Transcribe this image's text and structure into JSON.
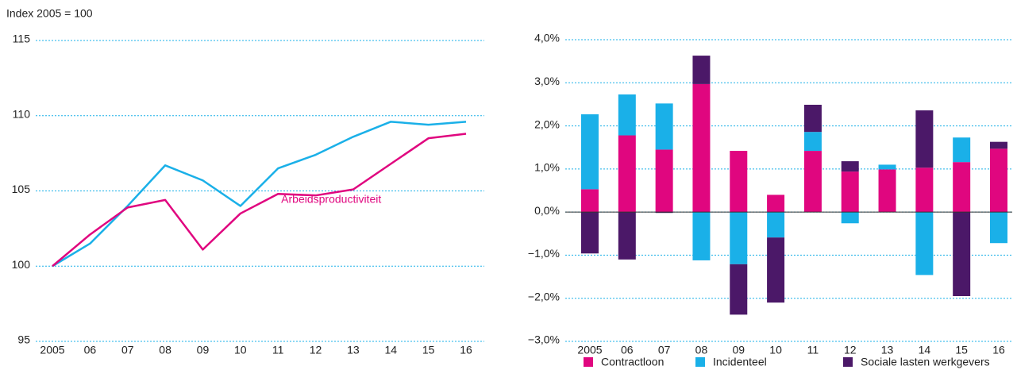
{
  "chart_data": [
    {
      "type": "line",
      "y_axis_label": "Index 2005 = 100",
      "categories": [
        "2005",
        "06",
        "07",
        "08",
        "09",
        "10",
        "11",
        "12",
        "13",
        "14",
        "15",
        "16"
      ],
      "series": [
        {
          "color": "#1ab0e8",
          "values": [
            100,
            101.5,
            104.0,
            106.7,
            105.7,
            104.0,
            106.5,
            107.4,
            108.6,
            109.6,
            109.4,
            109.6
          ]
        },
        {
          "name": "Arbeidsproductiviteit",
          "color": "#e0067f",
          "values": [
            100,
            102.1,
            103.9,
            104.4,
            101.1,
            103.5,
            104.8,
            104.7,
            105.1,
            106.8,
            108.5,
            108.8
          ]
        }
      ],
      "ylim": [
        95,
        115
      ],
      "yticks": [
        95,
        100,
        105,
        110,
        115
      ],
      "grid": true
    },
    {
      "type": "stacked_bar",
      "categories": [
        "2005",
        "06",
        "07",
        "08",
        "09",
        "10",
        "11",
        "12",
        "13",
        "14",
        "15",
        "16"
      ],
      "series": [
        {
          "name": "Contractloon",
          "color": "#e0067f",
          "values": [
            0.53,
            1.78,
            1.45,
            2.97,
            1.42,
            0.4,
            1.42,
            0.94,
            0.99,
            1.03,
            1.16,
            1.47
          ]
        },
        {
          "name": "Incidenteel",
          "color": "#1ab0e8",
          "values": [
            1.74,
            0.95,
            1.07,
            -1.12,
            -1.21,
            -0.59,
            0.44,
            -0.26,
            0.11,
            -1.46,
            0.57,
            -0.72
          ]
        },
        {
          "name": "Sociale lasten werkgevers",
          "color": "#4b1868",
          "values": [
            -0.96,
            -1.1,
            -0.02,
            0.66,
            -1.17,
            -1.51,
            0.63,
            0.24,
            0,
            1.33,
            -1.95,
            0.16
          ]
        }
      ],
      "ylim": [
        -3,
        4
      ],
      "yticks": [
        {
          "value": -3,
          "label": "−3,0%"
        },
        {
          "value": -2,
          "label": "−2,0%"
        },
        {
          "value": -1,
          "label": "−1,0%"
        },
        {
          "value": 0,
          "label": "0,0%"
        },
        {
          "value": 1,
          "label": "1,0%"
        },
        {
          "value": 2,
          "label": "2,0%"
        },
        {
          "value": 3,
          "label": "3,0%"
        },
        {
          "value": 4,
          "label": "4,0%"
        }
      ],
      "grid": true,
      "legend": "bottom"
    }
  ]
}
